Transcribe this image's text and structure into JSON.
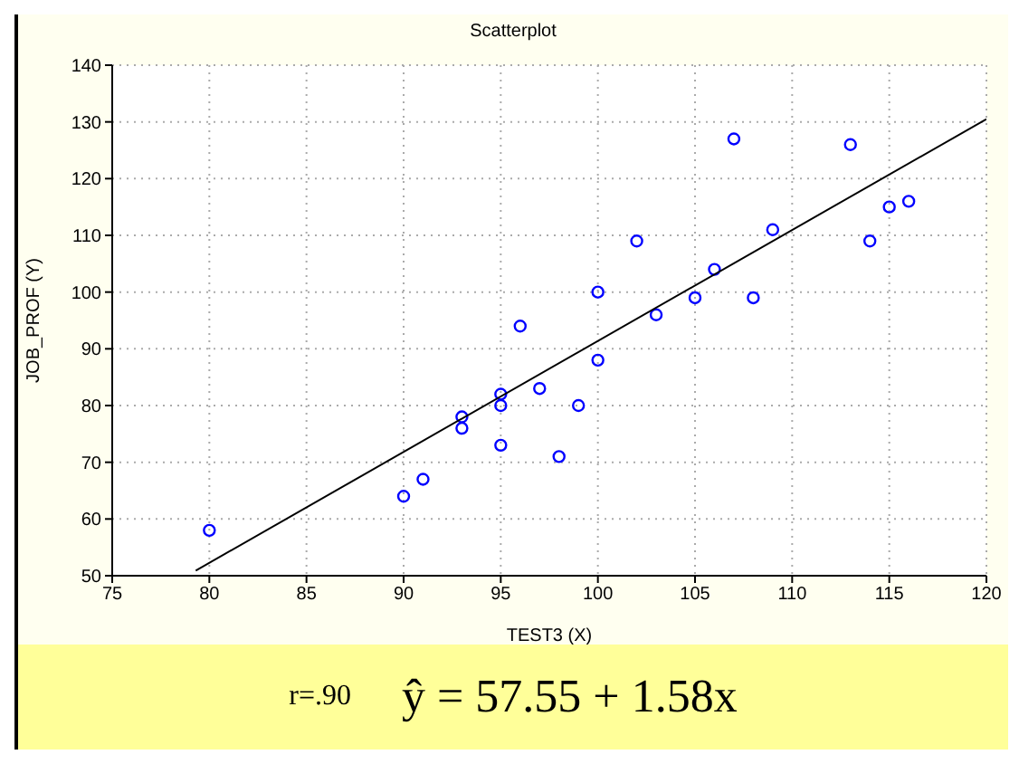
{
  "chart_data": {
    "type": "scatter",
    "title": "Scatterplot",
    "xlabel": "TEST3 (X)",
    "ylabel": "JOB_PROF (Y)",
    "xlim": [
      75,
      120
    ],
    "xticks": [
      75,
      80,
      85,
      90,
      95,
      100,
      105,
      110,
      115,
      120
    ],
    "ylim": [
      50,
      140
    ],
    "yticks": [
      50,
      60,
      70,
      80,
      90,
      100,
      110,
      120,
      130,
      140
    ],
    "grid": true,
    "marker": "circle",
    "series": [
      {
        "color": "#0000ff",
        "x": [
          80,
          90,
          91,
          93,
          93,
          95,
          95,
          95,
          96,
          97,
          98,
          99,
          100,
          100,
          102,
          103,
          105,
          106,
          107,
          108,
          109,
          113,
          114,
          115,
          116
        ],
        "values": [
          58,
          64,
          67,
          78,
          76,
          82,
          80,
          73,
          94,
          83,
          71,
          80,
          100,
          88,
          109,
          96,
          99,
          104,
          127,
          99,
          111,
          126,
          109,
          115,
          116
        ]
      },
      {
        "type": "line",
        "color": "#000000",
        "marker": "none",
        "x": [
          79.3,
          120
        ],
        "values": [
          50.9,
          130.5
        ]
      }
    ],
    "annotations": [
      "r=.90",
      "ŷ = 57.55 + 1.58x"
    ]
  }
}
